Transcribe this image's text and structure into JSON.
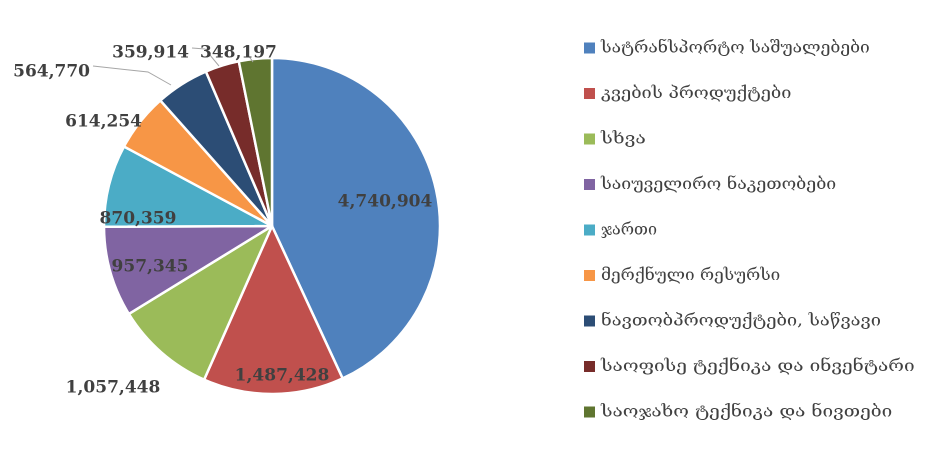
{
  "chart_data": {
    "type": "pie",
    "categories": [
      "სატრანსპორტო საშუალებები",
      "კვების პროდუქტები",
      "სხვა",
      "საიუველირო ნაკეთობები",
      "ჯართი",
      "მერქნული რესურსი",
      "ნავთობპროდუქტები, საწვავი",
      "საოფისე ტექნიკა და ინვენტარი",
      "საოჯახო ტექნიკა და ნივთები"
    ],
    "values": [
      4740904,
      1487428,
      1057448,
      957345,
      870359,
      614254,
      564770,
      359914,
      348197
    ],
    "data_labels": [
      "4,740,904",
      "1,487,428",
      "1,057,448",
      "957,345",
      "870,359",
      "614,254",
      "564,770",
      "359,914",
      "348,197"
    ],
    "colors": [
      "#4f81bd",
      "#c0504d",
      "#9bbb59",
      "#8064a2",
      "#4bacc6",
      "#f79646",
      "#2c4d75",
      "#772c2a",
      "#5f7530"
    ],
    "legend_position": "right",
    "start_angle": "12 o'clock",
    "direction": "clockwise"
  }
}
